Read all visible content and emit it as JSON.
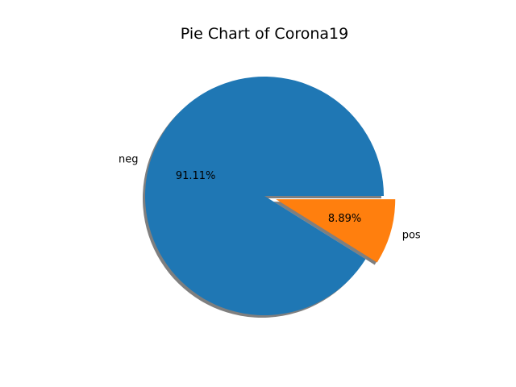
{
  "chart_data": {
    "type": "pie",
    "title": "Pie Chart of Corona19",
    "labels": [
      "neg",
      "pos"
    ],
    "values": [
      91.11,
      8.89
    ],
    "percent_labels": [
      "91.11%",
      "8.89%"
    ],
    "colors": [
      "#1f77b4",
      "#ff7f0e"
    ],
    "explode": [
      0,
      0.1
    ],
    "shadow": true,
    "start_angle_deg": 0
  }
}
